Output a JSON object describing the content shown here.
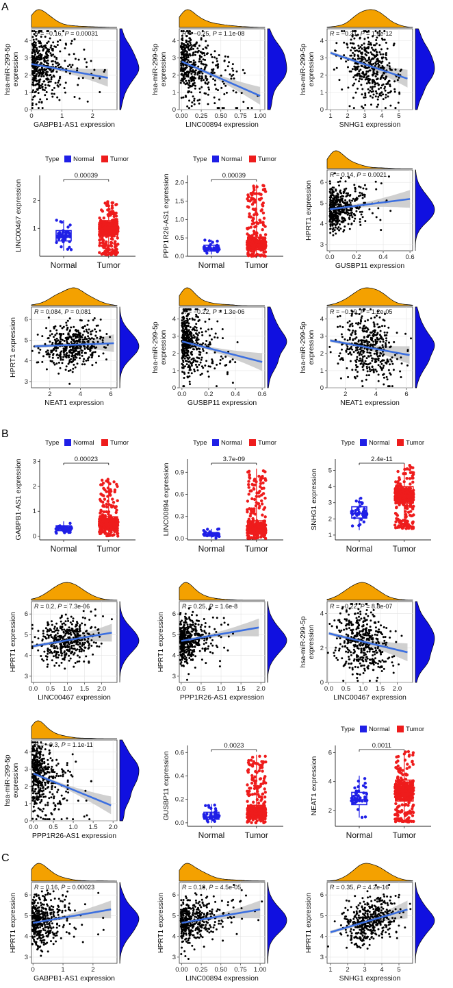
{
  "figure": {
    "panel_letters": [
      "A",
      "B",
      "C"
    ],
    "colors": {
      "normal": "#1f1fe6",
      "tumor": "#ee1c1c",
      "density_top": "#f4a100",
      "density_right": "#1010e0",
      "regression": "#3b6fe0",
      "ci_band": "#c8c8c8",
      "points": "#000000",
      "grid": "#e4e4e4"
    }
  },
  "chart_data": [
    {
      "id": "A1",
      "type": "scatter",
      "xlabel": "GABPB1-AS1 expression",
      "ylabel": [
        "hsa-miR-299-5p",
        "expression"
      ],
      "stat": {
        "R": "−0.16",
        "P": "0.00031"
      },
      "xlim": [
        0,
        2.8
      ],
      "ylim": [
        0,
        4.7
      ],
      "xticks": [
        0,
        1,
        2
      ],
      "yticks": [
        0,
        1,
        2,
        3,
        4
      ],
      "fit": {
        "x0": 0.0,
        "y0": 2.65,
        "x1": 2.5,
        "y1": 1.85
      },
      "n": 420,
      "xdist": {
        "type": "exp",
        "scale": 0.45
      },
      "ydist": {
        "mean": 2.4,
        "sd": 1.0
      },
      "seed": 11
    },
    {
      "id": "A2",
      "type": "scatter",
      "xlabel": "LINC00894 expression",
      "ylabel": [
        "hsa-miR-299-5p",
        "expression"
      ],
      "stat": {
        "R": "−0.25",
        "P": "1.1e-08"
      },
      "xlim": [
        -0.03,
        1.06
      ],
      "ylim": [
        0,
        4.7
      ],
      "xticks": [
        0.0,
        0.25,
        0.5,
        0.75,
        1.0
      ],
      "xticklabels": [
        "0.00",
        "0.25",
        "0.50",
        "0.75",
        "1.00"
      ],
      "yticks": [
        0,
        1,
        2,
        3,
        4
      ],
      "fit": {
        "x0": 0.0,
        "y0": 2.8,
        "x1": 1.0,
        "y1": 0.8
      },
      "n": 420,
      "xdist": {
        "type": "exp",
        "scale": 0.2
      },
      "ydist": {
        "mean": 2.4,
        "sd": 1.0
      },
      "seed": 12
    },
    {
      "id": "A3",
      "type": "scatter",
      "xlabel": "SNHG1 expression",
      "ylabel": [
        "hsa-miR-299-5p",
        "expression"
      ],
      "stat": {
        "R": "−0.31",
        "P": "1.9e-12"
      },
      "xlim": [
        0.8,
        5.8
      ],
      "ylim": [
        0,
        4.7
      ],
      "xticks": [
        1,
        2,
        3,
        4,
        5
      ],
      "yticks": [
        0,
        1,
        2,
        3,
        4
      ],
      "fit": {
        "x0": 1.0,
        "y0": 3.3,
        "x1": 5.5,
        "y1": 1.8
      },
      "n": 420,
      "xdist": {
        "type": "normal",
        "mean": 3.3,
        "sd": 0.8
      },
      "ydist": {
        "mean": 2.4,
        "sd": 1.0
      },
      "seed": 13
    },
    {
      "id": "A4",
      "type": "box",
      "ylabel": "LINC00467 expression",
      "categories": [
        "Normal",
        "Tumor"
      ],
      "legend": {
        "title": "Type",
        "entries": [
          "Normal",
          "Tumor"
        ]
      },
      "pvalue": "0.00039",
      "ylim": [
        0,
        2.9
      ],
      "yticks": [
        1,
        2
      ],
      "boxes": [
        {
          "q1": 0.55,
          "med": 0.75,
          "q3": 0.92,
          "lo": 0.2,
          "hi": 1.3,
          "n": 45
        },
        {
          "q1": 0.72,
          "med": 0.98,
          "q3": 1.28,
          "lo": 0.05,
          "hi": 2.0,
          "n": 420
        }
      ],
      "seed": 14
    },
    {
      "id": "A5",
      "type": "box",
      "ylabel": "PPP1R26-AS1 expression",
      "categories": [
        "Normal",
        "Tumor"
      ],
      "legend": {
        "title": "Type",
        "entries": [
          "Normal",
          "Tumor"
        ]
      },
      "pvalue": "0.00039",
      "ylim": [
        0,
        2.2
      ],
      "yticks": [
        0.0,
        0.5,
        1.0,
        1.5,
        2.0
      ],
      "yticklabels": [
        "0.0",
        "0.5",
        "1.0",
        "1.5",
        "2.0"
      ],
      "boxes": [
        {
          "q1": 0.14,
          "med": 0.2,
          "q3": 0.3,
          "lo": 0.05,
          "hi": 0.45,
          "n": 45
        },
        {
          "q1": 0.18,
          "med": 0.32,
          "q3": 0.52,
          "lo": 0.0,
          "hi": 1.95,
          "n": 420
        }
      ],
      "seed": 15
    },
    {
      "id": "A6",
      "type": "scatter",
      "xlabel": "GUSBP11 expression",
      "ylabel": [
        "HPRT1 expression"
      ],
      "stat": {
        "R": "0.14",
        "P": "0.0021"
      },
      "xlim": [
        -0.02,
        0.62
      ],
      "ylim": [
        2.7,
        6.6
      ],
      "xticks": [
        0.0,
        0.2,
        0.4,
        0.6
      ],
      "xticklabels": [
        "0.0",
        "0.2",
        "0.4",
        "0.6"
      ],
      "yticks": [
        3,
        4,
        5,
        6
      ],
      "fit": {
        "x0": 0.0,
        "y0": 4.7,
        "x1": 0.6,
        "y1": 5.2
      },
      "n": 420,
      "xdist": {
        "type": "exp",
        "scale": 0.09
      },
      "ydist": {
        "mean": 4.8,
        "sd": 0.55
      },
      "seed": 16
    },
    {
      "id": "A7",
      "type": "scatter",
      "xlabel": "NEAT1 expression",
      "ylabel": [
        "HPRT1 expression"
      ],
      "stat": {
        "R": "0.084",
        "P": "0.081"
      },
      "xlim": [
        0.8,
        6.4
      ],
      "ylim": [
        2.7,
        6.6
      ],
      "xticks": [
        2,
        4,
        6
      ],
      "yticks": [
        3,
        4,
        5,
        6
      ],
      "fit": {
        "x0": 1.0,
        "y0": 4.7,
        "x1": 6.2,
        "y1": 4.85
      },
      "n": 420,
      "xdist": {
        "type": "normal",
        "mean": 3.5,
        "sd": 1.0
      },
      "ydist": {
        "mean": 4.8,
        "sd": 0.55
      },
      "seed": 17
    },
    {
      "id": "A8",
      "type": "scatter",
      "xlabel": "GUSBP11 expression",
      "ylabel": [
        "hsa-miR-299-5p",
        "expression"
      ],
      "stat": {
        "R": "−0.22",
        "P": "1.3e-06"
      },
      "xlim": [
        -0.02,
        0.62
      ],
      "ylim": [
        0,
        4.7
      ],
      "xticks": [
        0.0,
        0.2,
        0.4,
        0.6
      ],
      "xticklabels": [
        "0.0",
        "0.2",
        "0.4",
        "0.6"
      ],
      "yticks": [
        0,
        1,
        2,
        3,
        4
      ],
      "fit": {
        "x0": 0.0,
        "y0": 2.7,
        "x1": 0.6,
        "y1": 1.5
      },
      "n": 420,
      "xdist": {
        "type": "exp",
        "scale": 0.09
      },
      "ydist": {
        "mean": 2.4,
        "sd": 1.0
      },
      "seed": 18
    },
    {
      "id": "A9",
      "type": "scatter",
      "xlabel": "NEAT1 expression",
      "ylabel": [
        "hsa-miR-299-5p",
        "expression"
      ],
      "stat": {
        "R": "−0.19",
        "P": "1.2e-05"
      },
      "xlim": [
        0.8,
        6.4
      ],
      "ylim": [
        0,
        4.7
      ],
      "xticks": [
        2,
        4,
        6
      ],
      "yticks": [
        0,
        1,
        2,
        3,
        4
      ],
      "fit": {
        "x0": 1.0,
        "y0": 2.75,
        "x1": 6.2,
        "y1": 1.9
      },
      "n": 420,
      "xdist": {
        "type": "normal",
        "mean": 3.5,
        "sd": 1.0
      },
      "ydist": {
        "mean": 2.4,
        "sd": 1.0
      },
      "seed": 19
    },
    {
      "id": "B1",
      "type": "box",
      "ylabel": "GABPB1-AS1 expression",
      "categories": [
        "Normal",
        "Tumor"
      ],
      "legend": {
        "title": "Type",
        "entries": [
          "Normal",
          "Tumor"
        ]
      },
      "pvalue": "0.00023",
      "ylim": [
        -0.15,
        3.1
      ],
      "yticks": [
        0,
        1,
        2,
        3
      ],
      "boxes": [
        {
          "q1": 0.22,
          "med": 0.3,
          "q3": 0.42,
          "lo": 0.1,
          "hi": 0.6,
          "n": 45
        },
        {
          "q1": 0.28,
          "med": 0.48,
          "q3": 0.78,
          "lo": 0.0,
          "hi": 2.3,
          "n": 420
        }
      ],
      "seed": 21
    },
    {
      "id": "B2",
      "type": "box",
      "ylabel": "LINC00894 expression",
      "categories": [
        "Normal",
        "Tumor"
      ],
      "legend": {
        "title": "Type",
        "entries": [
          "Normal",
          "Tumor"
        ]
      },
      "pvalue": "3.7e-09",
      "ylim": [
        -0.02,
        1.08
      ],
      "yticks": [
        0.0,
        0.3,
        0.6,
        0.9
      ],
      "yticklabels": [
        "0.0",
        "0.3",
        "0.6",
        "0.9"
      ],
      "boxes": [
        {
          "q1": 0.03,
          "med": 0.05,
          "q3": 0.08,
          "lo": 0.0,
          "hi": 0.13,
          "n": 45
        },
        {
          "q1": 0.06,
          "med": 0.12,
          "q3": 0.24,
          "lo": 0.0,
          "hi": 0.95,
          "n": 420
        }
      ],
      "seed": 22
    },
    {
      "id": "B3",
      "type": "box",
      "ylabel": "SNHG1 expression",
      "categories": [
        "Normal",
        "Tumor"
      ],
      "legend": {
        "title": "Type",
        "entries": [
          "Normal",
          "Tumor"
        ]
      },
      "pvalue": "2.4e-11",
      "ylim": [
        0.7,
        5.7
      ],
      "yticks": [
        1,
        2,
        3,
        4,
        5
      ],
      "boxes": [
        {
          "q1": 2.05,
          "med": 2.35,
          "q3": 2.75,
          "lo": 1.3,
          "hi": 3.3,
          "n": 45
        },
        {
          "q1": 2.95,
          "med": 3.4,
          "q3": 4.0,
          "lo": 1.4,
          "hi": 5.4,
          "n": 420
        }
      ],
      "seed": 23
    },
    {
      "id": "B4",
      "type": "scatter",
      "xlabel": "LINC00467 expression",
      "ylabel": [
        "HPRT1 expression"
      ],
      "stat": {
        "R": "0.2",
        "P": "7.3e-06"
      },
      "xlim": [
        -0.05,
        2.45
      ],
      "ylim": [
        2.7,
        6.6
      ],
      "xticks": [
        0.0,
        0.5,
        1.0,
        1.5,
        2.0
      ],
      "xticklabels": [
        "0.0",
        "0.5",
        "1.0",
        "1.5",
        "2.0"
      ],
      "yticks": [
        3,
        4,
        5,
        6
      ],
      "fit": {
        "x0": 0.0,
        "y0": 4.45,
        "x1": 2.3,
        "y1": 5.1
      },
      "n": 420,
      "xdist": {
        "type": "normal",
        "mean": 1.0,
        "sd": 0.42
      },
      "ydist": {
        "mean": 4.8,
        "sd": 0.55
      },
      "seed": 24
    },
    {
      "id": "B5",
      "type": "scatter",
      "xlabel": "PPP1R26-AS1 expression",
      "ylabel": [
        "HPRT1 expression"
      ],
      "stat": {
        "R": "0.25",
        "P": "1.6e-8"
      },
      "xlim": [
        -0.05,
        2.1
      ],
      "ylim": [
        2.7,
        6.6
      ],
      "xticks": [
        0.0,
        0.5,
        1.0,
        1.5,
        2.0
      ],
      "xticklabels": [
        "0.0",
        "0.5",
        "1.0",
        "1.5",
        "2.0"
      ],
      "yticks": [
        3,
        4,
        5,
        6
      ],
      "fit": {
        "x0": 0.0,
        "y0": 4.7,
        "x1": 1.95,
        "y1": 5.35
      },
      "n": 420,
      "xdist": {
        "type": "exp",
        "scale": 0.3
      },
      "ydist": {
        "mean": 4.8,
        "sd": 0.55
      },
      "seed": 25
    },
    {
      "id": "B6",
      "type": "scatter",
      "xlabel": "LINC00467 expression",
      "ylabel": [
        "hsa-miR-299-5p",
        "expression"
      ],
      "stat": {
        "R": "−0.22",
        "P": "8.8e-07"
      },
      "xlim": [
        -0.05,
        2.45
      ],
      "ylim": [
        0,
        4.7
      ],
      "xticks": [
        0.0,
        0.5,
        1.0,
        1.5,
        2.0
      ],
      "xticklabels": [
        "0.0",
        "0.5",
        "1.0",
        "1.5",
        "2.0"
      ],
      "yticks": [
        0,
        2,
        4
      ],
      "fit": {
        "x0": 0.0,
        "y0": 2.85,
        "x1": 2.3,
        "y1": 1.75
      },
      "n": 420,
      "xdist": {
        "type": "normal",
        "mean": 1.0,
        "sd": 0.42
      },
      "ydist": {
        "mean": 2.4,
        "sd": 1.0
      },
      "seed": 26
    },
    {
      "id": "B7",
      "type": "scatter",
      "xlabel": "PPP1R26-AS1 expression",
      "ylabel": [
        "hsa-miR-299-5p",
        "expression"
      ],
      "stat": {
        "R": "−0.3",
        "P": "1.1e-11"
      },
      "xlim": [
        -0.05,
        2.1
      ],
      "ylim": [
        0,
        4.7
      ],
      "xticks": [
        0.0,
        0.5,
        1.0,
        1.5,
        2.0
      ],
      "xticklabels": [
        "0.0",
        "0.5",
        "1.0",
        "1.5",
        "2.0"
      ],
      "yticks": [
        0,
        1,
        2,
        3,
        4
      ],
      "fit": {
        "x0": 0.0,
        "y0": 2.75,
        "x1": 1.95,
        "y1": 0.9
      },
      "n": 420,
      "xdist": {
        "type": "exp",
        "scale": 0.3
      },
      "ydist": {
        "mean": 2.4,
        "sd": 1.0
      },
      "seed": 27
    },
    {
      "id": "B8",
      "type": "box",
      "ylabel": "GUSBP11 expression",
      "categories": [
        "Normal",
        "Tumor"
      ],
      "legend": null,
      "pvalue": "0.0023",
      "ylim": [
        -0.03,
        0.66
      ],
      "yticks": [
        0.0,
        0.2,
        0.4,
        0.6
      ],
      "yticklabels": [
        "0.0",
        "0.2",
        "0.4",
        "0.6"
      ],
      "boxes": [
        {
          "q1": 0.03,
          "med": 0.05,
          "q3": 0.09,
          "lo": 0.0,
          "hi": 0.16,
          "n": 45
        },
        {
          "q1": 0.04,
          "med": 0.08,
          "q3": 0.15,
          "lo": 0.0,
          "hi": 0.58,
          "n": 420
        }
      ],
      "seed": 28
    },
    {
      "id": "B9",
      "type": "box",
      "ylabel": "NEAT1 expression",
      "categories": [
        "Normal",
        "Tumor"
      ],
      "legend": {
        "title": "Type",
        "entries": [
          "Normal",
          "Tumor"
        ]
      },
      "pvalue": "0.0011",
      "ylim": [
        0.9,
        6.5
      ],
      "yticks": [
        2,
        4,
        6
      ],
      "boxes": [
        {
          "q1": 2.4,
          "med": 2.75,
          "q3": 3.25,
          "lo": 1.5,
          "hi": 4.4,
          "n": 45
        },
        {
          "q1": 2.65,
          "med": 3.3,
          "q3": 4.1,
          "lo": 1.2,
          "hi": 6.1,
          "n": 420
        }
      ],
      "seed": 29
    },
    {
      "id": "C1",
      "type": "scatter",
      "xlabel": "GABPB1-AS1 expression",
      "ylabel": [
        "HPRT1 expression"
      ],
      "stat": {
        "R": "0.16",
        "P": "0.00023"
      },
      "xlim": [
        -0.05,
        2.8
      ],
      "ylim": [
        2.7,
        6.6
      ],
      "xticks": [
        0,
        1,
        2
      ],
      "yticks": [
        3,
        4,
        5,
        6
      ],
      "fit": {
        "x0": 0.0,
        "y0": 4.65,
        "x1": 2.6,
        "y1": 5.3
      },
      "n": 420,
      "xdist": {
        "type": "exp",
        "scale": 0.45
      },
      "ydist": {
        "mean": 4.8,
        "sd": 0.55
      },
      "seed": 31
    },
    {
      "id": "C2",
      "type": "scatter",
      "xlabel": "LINC00894 expression",
      "ylabel": [
        "HPRT1 expression"
      ],
      "stat": {
        "R": "0.18",
        "P": "4.5e-05"
      },
      "xlim": [
        -0.03,
        1.06
      ],
      "ylim": [
        2.7,
        6.6
      ],
      "xticks": [
        0.0,
        0.25,
        0.5,
        0.75,
        1.0
      ],
      "xticklabels": [
        "0.00",
        "0.25",
        "0.50",
        "0.75",
        "1.00"
      ],
      "yticks": [
        3,
        4,
        5,
        6
      ],
      "fit": {
        "x0": 0.0,
        "y0": 4.65,
        "x1": 1.0,
        "y1": 5.3
      },
      "n": 420,
      "xdist": {
        "type": "exp",
        "scale": 0.2
      },
      "ydist": {
        "mean": 4.8,
        "sd": 0.55
      },
      "seed": 32
    },
    {
      "id": "C3",
      "type": "scatter",
      "xlabel": "SNHG1 expression",
      "ylabel": [
        "HPRT1 expression"
      ],
      "stat": {
        "R": "0.35",
        "P": "4.2e-16"
      },
      "xlim": [
        0.8,
        5.8
      ],
      "ylim": [
        2.7,
        6.6
      ],
      "xticks": [
        1,
        2,
        3,
        4,
        5
      ],
      "yticks": [
        3,
        4,
        5,
        6
      ],
      "fit": {
        "x0": 1.0,
        "y0": 4.2,
        "x1": 5.5,
        "y1": 5.3
      },
      "n": 420,
      "xdist": {
        "type": "normal",
        "mean": 3.3,
        "sd": 0.8
      },
      "ydist": {
        "mean": 4.8,
        "sd": 0.55
      },
      "seed": 33
    }
  ]
}
